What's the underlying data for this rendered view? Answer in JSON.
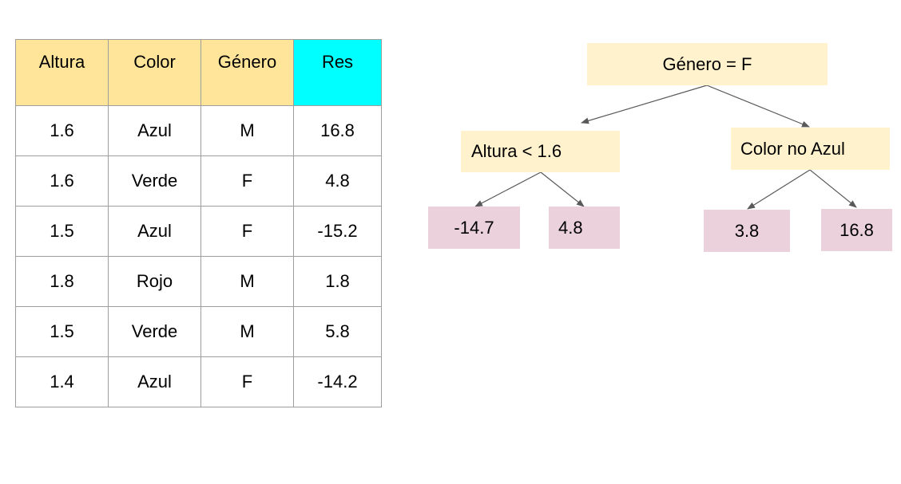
{
  "table": {
    "headers": [
      "Altura",
      "Color",
      "Género",
      "Res"
    ],
    "rows": [
      [
        "1.6",
        "Azul",
        "M",
        "16.8"
      ],
      [
        "1.6",
        "Verde",
        "F",
        "4.8"
      ],
      [
        "1.5",
        "Azul",
        "F",
        "-15.2"
      ],
      [
        "1.8",
        "Rojo",
        "M",
        "1.8"
      ],
      [
        "1.5",
        "Verde",
        "M",
        "5.8"
      ],
      [
        "1.4",
        "Azul",
        "F",
        "-14.2"
      ]
    ],
    "colors": {
      "header": "#ffe599",
      "result_header": "#00ffff",
      "border": "#9e9e9e"
    }
  },
  "tree": {
    "root": "Género = F",
    "left_split": "Altura < 1.6",
    "right_split": "Color no Azul",
    "left_leaves": [
      "-14.7",
      "4.8"
    ],
    "right_leaves": [
      "3.8",
      "16.8"
    ],
    "colors": {
      "decision": "#fff2cc",
      "leaf": "#ead1dc",
      "edge": "#595959"
    }
  }
}
